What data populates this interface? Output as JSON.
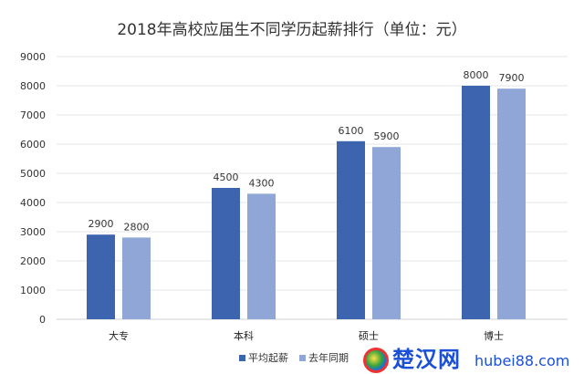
{
  "chart_data": {
    "type": "bar",
    "title": "2018年高校应届生不同学历起薪排行（单位：元）",
    "categories": [
      "大专",
      "本科",
      "硕士",
      "博士"
    ],
    "series": [
      {
        "name": "平均起薪",
        "values": [
          2900,
          4500,
          6100,
          8000
        ],
        "color": "#3d64ae"
      },
      {
        "name": "去年同期",
        "values": [
          2800,
          4300,
          5900,
          7900
        ],
        "color": "#8fa6d6"
      }
    ],
    "yticks": [
      0,
      1000,
      2000,
      3000,
      4000,
      5000,
      6000,
      7000,
      8000,
      9000
    ],
    "ylim": [
      0,
      9000
    ],
    "grid": true,
    "legend": "bottom",
    "data_labels": true
  },
  "watermark": {
    "name": "楚汉网",
    "url": "hubei88.com"
  }
}
